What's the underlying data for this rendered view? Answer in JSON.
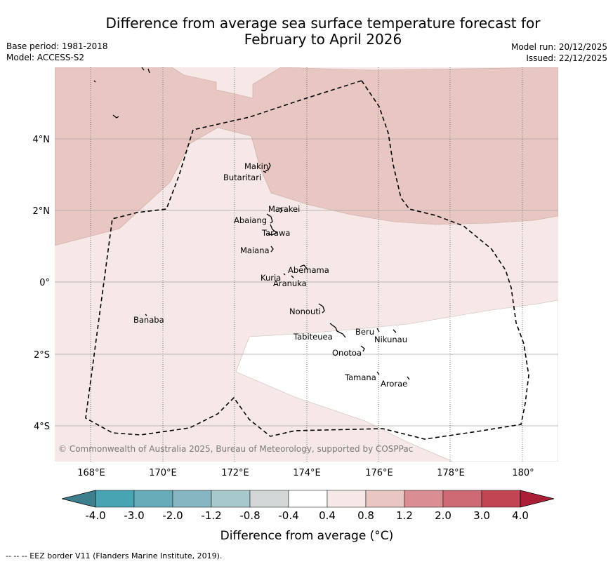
{
  "title_line1": "Difference from average sea surface temperature forecast for",
  "title_line2": "February to April 2026",
  "base_period": "Base period: 1981-2018",
  "model": "Model: ACCESS-S2",
  "model_run": "Model run: 20/12/2025",
  "issued": "Issued: 22/12/2025",
  "copyright": "© Commonwealth of Australia 2025, Bureau of Meteorology, supported by COSPPac",
  "lat_labels": [
    "4°N",
    "2°N",
    "0°",
    "2°S",
    "4°S"
  ],
  "lon_labels": [
    "168°E",
    "170°E",
    "172°E",
    "174°E",
    "176°E",
    "178°E",
    "180°"
  ],
  "places": [
    {
      "name": "Makin"
    },
    {
      "name": "Butaritari"
    },
    {
      "name": "Marakei"
    },
    {
      "name": "Abaiang"
    },
    {
      "name": "Tarawa"
    },
    {
      "name": "Maiana"
    },
    {
      "name": "Abemama"
    },
    {
      "name": "Kuria"
    },
    {
      "name": "Aranuka"
    },
    {
      "name": "Nonouti"
    },
    {
      "name": "Banaba"
    },
    {
      "name": "Beru"
    },
    {
      "name": "Tabiteuea"
    },
    {
      "name": "Nikunau"
    },
    {
      "name": "Onotoa"
    },
    {
      "name": "Tamana"
    },
    {
      "name": "Arorae"
    }
  ],
  "colorbar": {
    "ticks": [
      "-4.0",
      "-3.0",
      "-2.0",
      "-1.2",
      "-0.8",
      "-0.4",
      "0.4",
      "0.8",
      "1.2",
      "2.0",
      "3.0",
      "4.0"
    ],
    "colors": [
      "#3e7f8d",
      "#48a3b2",
      "#68acb9",
      "#86b6c1",
      "#a8c9cc",
      "#d3d6d6",
      "#ffffff",
      "#f5e8e6",
      "#e8c6c1",
      "#d98e94",
      "#cd6a74",
      "#c24554",
      "#aa1f35"
    ],
    "label": "Difference from average (°C)"
  },
  "footnote": "--  --  -- EEZ border V11 (Flanders Marine Institute, 2019)."
}
